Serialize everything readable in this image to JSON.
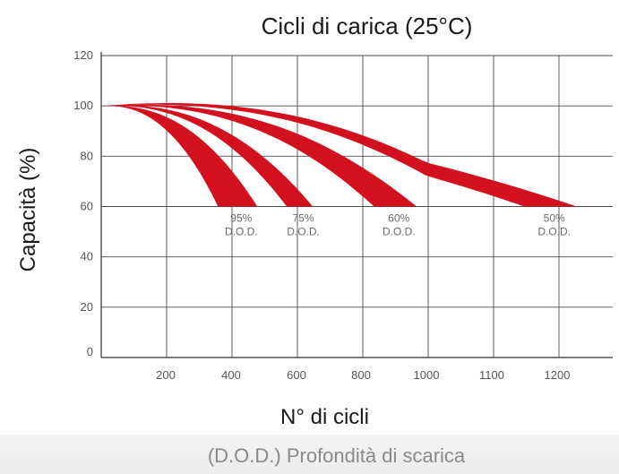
{
  "chart_data": {
    "type": "area",
    "title": "Cicli di carica (25°C)",
    "xlabel": "N° di cicli",
    "ylabel": "Capacità (%)",
    "x_ticks": [
      "200",
      "400",
      "600",
      "800",
      "1000",
      "1100",
      "1200"
    ],
    "y_ticks": [
      0,
      20,
      40,
      60,
      80,
      100,
      120
    ],
    "ylim": [
      0,
      120
    ],
    "grid": true,
    "color": "#d3101e",
    "series": [
      {
        "name": "95% D.O.D.",
        "dod": "95%",
        "unit": "D.O.D.",
        "start": 100,
        "peak_lower": 100.5,
        "peak_upper": 101,
        "end_lower_cycles": 360,
        "end_upper_cycles": 480,
        "end_capacity": 60
      },
      {
        "name": "75% D.O.D.",
        "dod": "75%",
        "unit": "D.O.D.",
        "start": 100,
        "peak_lower": 101,
        "peak_upper": 102,
        "end_lower_cycles": 570,
        "end_upper_cycles": 650,
        "end_capacity": 60
      },
      {
        "name": "60% D.O.D.",
        "dod": "60%",
        "unit": "D.O.D.",
        "start": 100,
        "peak_lower": 101.5,
        "peak_upper": 103,
        "end_lower_cycles": 840,
        "end_upper_cycles": 970,
        "end_capacity": 60
      },
      {
        "name": "50% D.O.D.",
        "dod": "50%",
        "unit": "D.O.D.",
        "start": 100,
        "peak_lower": 103,
        "peak_upper": 105,
        "end_lower_cycles": 1150,
        "end_upper_cycles": 1230,
        "end_capacity": 60
      }
    ]
  },
  "footer": "(D.O.D.) Profondità di scarica"
}
